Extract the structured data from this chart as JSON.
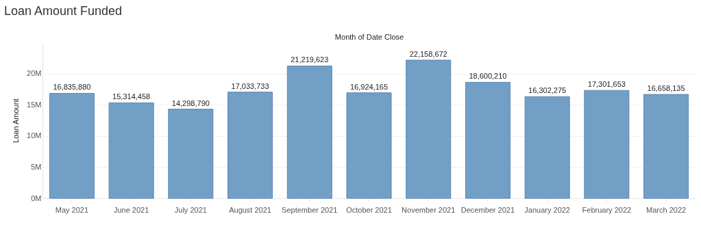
{
  "chart_data": {
    "type": "bar",
    "title": "Loan Amount Funded",
    "xlabel": "Month of Date Close",
    "ylabel": "Loan Amount",
    "categories": [
      "May 2021",
      "June 2021",
      "July 2021",
      "August 2021",
      "September 2021",
      "October 2021",
      "November 2021",
      "December 2021",
      "January 2022",
      "February 2022",
      "March 2022"
    ],
    "values": [
      16835880,
      15314458,
      14298790,
      17033733,
      21219623,
      16924165,
      22158672,
      18600210,
      16302275,
      17301653,
      16658135
    ],
    "color": "#729fc6",
    "ylim": [
      0,
      25000000
    ],
    "yticks": [
      {
        "value": 0,
        "label": "0M"
      },
      {
        "value": 5000000,
        "label": "5M"
      },
      {
        "value": 10000000,
        "label": "10M"
      },
      {
        "value": 15000000,
        "label": "15M"
      },
      {
        "value": 20000000,
        "label": "20M"
      }
    ],
    "value_labels": [
      "16,835,880",
      "15,314,458",
      "14,298,790",
      "17,033,733",
      "21,219,623",
      "16,924,165",
      "22,158,672",
      "18,600,210",
      "16,302,275",
      "17,301,653",
      "16,658,135"
    ],
    "grid": "y"
  }
}
